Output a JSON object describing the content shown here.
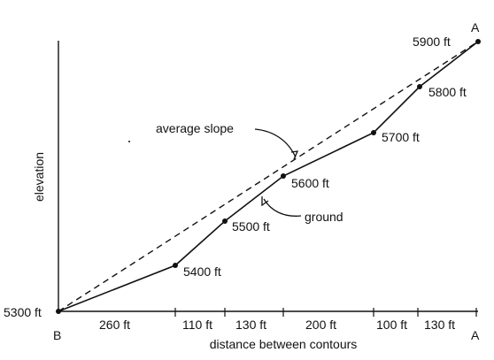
{
  "axis_labels": {
    "y": "elevation",
    "x": "distance between contours"
  },
  "endpoints": {
    "start": "B",
    "end": "A"
  },
  "elevation_labels": [
    "5300 ft",
    "5400 ft",
    "5500 ft",
    "5600 ft",
    "5700 ft",
    "5800 ft",
    "5900 ft"
  ],
  "distance_labels": [
    "260 ft",
    "110 ft",
    "130 ft",
    "200 ft",
    "100 ft",
    "130 ft"
  ],
  "annotations": {
    "average_slope": "average slope",
    "ground": "ground"
  }
}
